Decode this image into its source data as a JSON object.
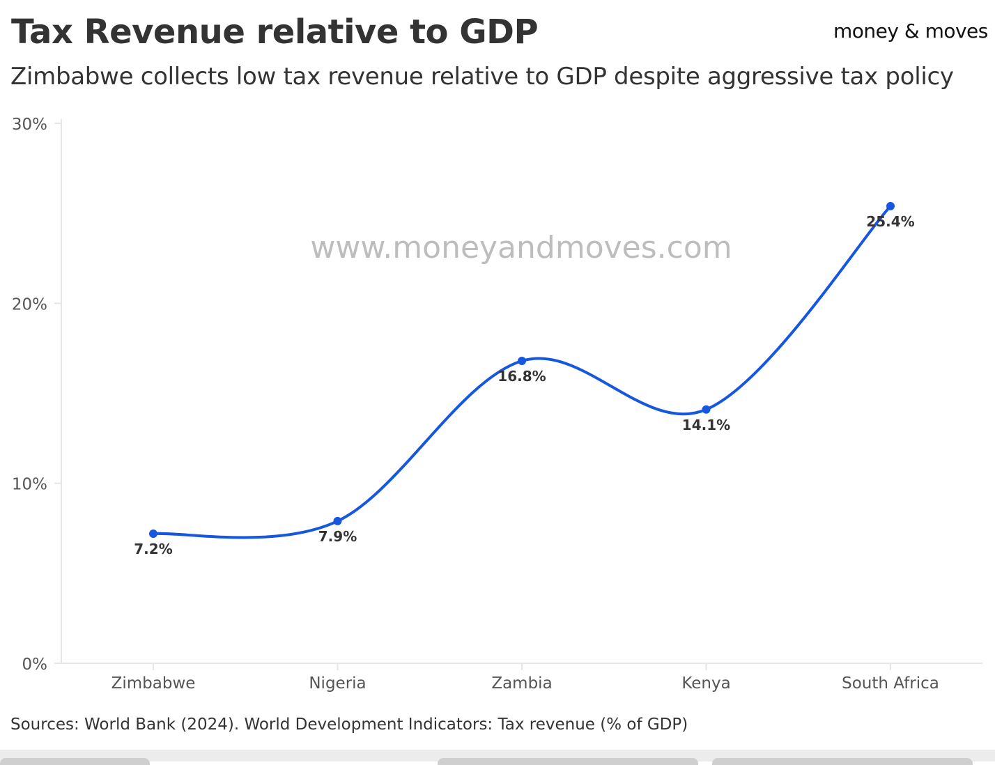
{
  "header": {
    "title": "Tax Revenue relative to GDP",
    "subtitle": "Zimbabwe collects low tax revenue relative to GDP despite aggressive tax policy",
    "logo": "money & moves"
  },
  "watermark": "www.moneyandmoves.com",
  "source": "Sources: World Bank (2024). World Development Indicators: Tax revenue (% of GDP)",
  "chart_data": {
    "type": "line",
    "title": "Tax Revenue relative to GDP",
    "categories": [
      "Zimbabwe",
      "Nigeria",
      "Zambia",
      "Kenya",
      "South Africa"
    ],
    "values": [
      7.2,
      7.9,
      16.8,
      14.1,
      25.4
    ],
    "data_labels": [
      "7.2%",
      "7.9%",
      "16.8%",
      "14.1%",
      "25.4%"
    ],
    "ylim": [
      0,
      30
    ],
    "yticks": [
      0,
      10,
      20,
      30
    ],
    "ytick_labels": [
      "0%",
      "10%",
      "20%",
      "30%"
    ],
    "xlabel": "",
    "ylabel": "",
    "grid": false,
    "line_color": "#1657e0",
    "smooth": true
  }
}
